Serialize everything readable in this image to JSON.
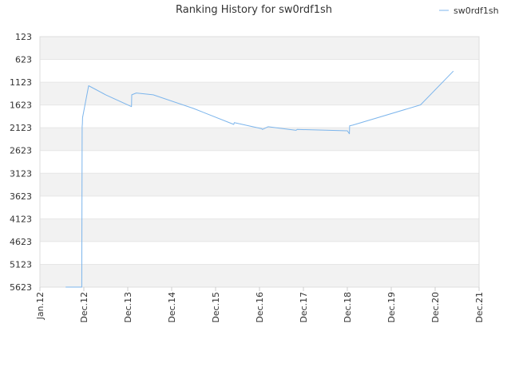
{
  "chart_data": {
    "type": "line",
    "title": "Ranking History for sw0rdf1sh",
    "xlabel": "",
    "ylabel": "",
    "y_inverted": true,
    "ylim": [
      123,
      5623
    ],
    "y_ticks": [
      123,
      623,
      1123,
      1623,
      2123,
      2623,
      3123,
      3623,
      4123,
      4623,
      5123,
      5623
    ],
    "x_ticks": [
      "Jan.12",
      "Dec.12",
      "Dec.13",
      "Dec.14",
      "Dec.15",
      "Dec.16",
      "Dec.17",
      "Dec.18",
      "Dec.19",
      "Dec.20",
      "Dec.21"
    ],
    "legend": {
      "position": "top-right"
    },
    "grid": true,
    "band_colors": [
      "#f2f2f2",
      "#ffffff"
    ],
    "colors": {
      "series": "#7cb5ec",
      "axis": "#dddddd",
      "text": "#333333",
      "grid": "#e6e6e6"
    },
    "series": [
      {
        "name": "sw0rdf1sh",
        "points": [
          {
            "x": "2012-07-15",
            "y": 5623
          },
          {
            "x": "2012-11-15",
            "y": 5623
          },
          {
            "x": "2012-11-18",
            "y": 2100
          },
          {
            "x": "2012-11-20",
            "y": 2030
          },
          {
            "x": "2012-11-21",
            "y": 1900
          },
          {
            "x": "2013-01-10",
            "y": 1200
          },
          {
            "x": "2013-03-01",
            "y": 1270
          },
          {
            "x": "2013-06-01",
            "y": 1400
          },
          {
            "x": "2014-01-01",
            "y": 1660
          },
          {
            "x": "2014-01-03",
            "y": 1400
          },
          {
            "x": "2014-02-10",
            "y": 1360
          },
          {
            "x": "2014-07-01",
            "y": 1400
          },
          {
            "x": "2015-06-01",
            "y": 1700
          },
          {
            "x": "2016-05-01",
            "y": 2050
          },
          {
            "x": "2016-05-05",
            "y": 2010
          },
          {
            "x": "2016-12-20",
            "y": 2145
          },
          {
            "x": "2016-12-25",
            "y": 2160
          },
          {
            "x": "2017-02-10",
            "y": 2100
          },
          {
            "x": "2017-10-01",
            "y": 2180
          },
          {
            "x": "2017-10-10",
            "y": 2160
          },
          {
            "x": "2018-12-01",
            "y": 2190
          },
          {
            "x": "2018-12-18",
            "y": 2255
          },
          {
            "x": "2018-12-20",
            "y": 2080
          },
          {
            "x": "2019-01-15",
            "y": 2065
          },
          {
            "x": "2020-08-01",
            "y": 1620
          },
          {
            "x": "2021-05-01",
            "y": 880
          }
        ]
      }
    ]
  }
}
